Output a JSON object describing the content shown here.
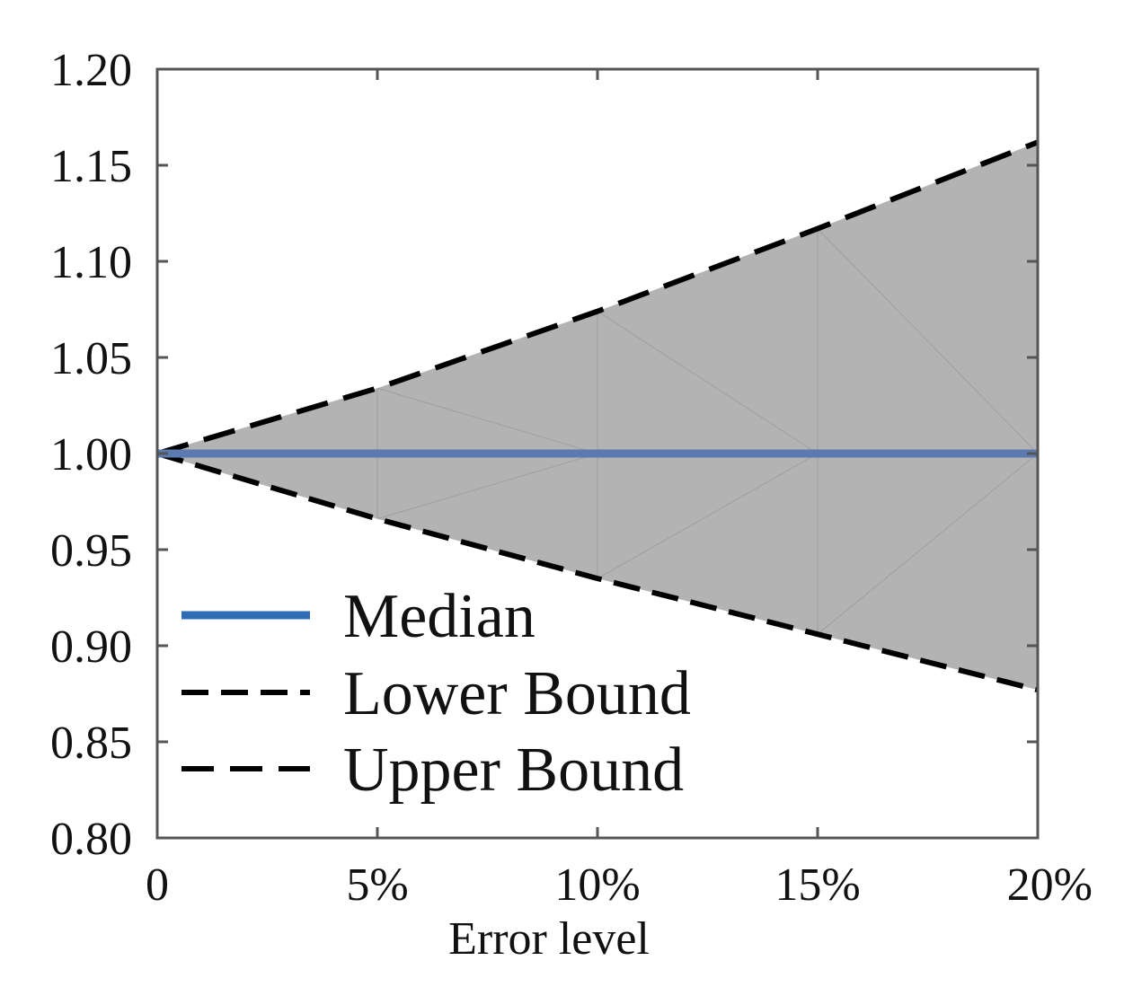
{
  "chart_data": {
    "type": "area",
    "title": "",
    "xlabel": "Error level",
    "ylabel": "",
    "x": [
      0,
      0.05,
      0.1,
      0.15,
      0.2
    ],
    "x_tick_values": [
      0,
      0.05,
      0.1,
      0.15,
      0.2
    ],
    "x_tick_labels": [
      "0",
      "5%",
      "10%",
      "15%",
      "20%"
    ],
    "y_tick_values": [
      0.8,
      0.85,
      0.9,
      0.95,
      1.0,
      1.05,
      1.1,
      1.15,
      1.2
    ],
    "y_tick_labels": [
      "0.80",
      "0.85",
      "0.90",
      "0.95",
      "1.00",
      "1.05",
      "1.10",
      "1.15",
      "1.20"
    ],
    "xlim": [
      0,
      0.2
    ],
    "ylim": [
      0.8,
      1.2
    ],
    "grid": false,
    "legend_position": "bottom-left",
    "series": [
      {
        "name": "Median",
        "values": [
          1.0,
          1.0,
          1.0,
          1.0,
          1.0
        ],
        "color": "#5b7bb0",
        "style": "solid",
        "legend_color": "#2e6db4"
      },
      {
        "name": "Lower Bound",
        "values": [
          1.0,
          0.966,
          0.935,
          0.906,
          0.877
        ],
        "color": "#000000",
        "style": "dashed"
      },
      {
        "name": "Upper Bound",
        "values": [
          1.0,
          1.034,
          1.074,
          1.117,
          1.162
        ],
        "color": "#000000",
        "style": "long-dashed"
      }
    ],
    "band_color": "#b3b3b3",
    "axis_color": "#555555"
  }
}
